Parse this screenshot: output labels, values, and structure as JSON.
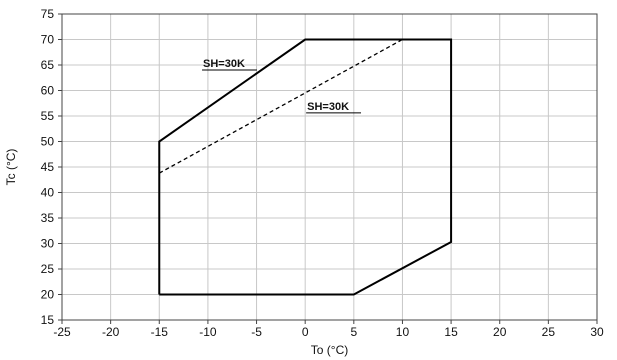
{
  "chart_data": {
    "type": "line",
    "title": "",
    "xlabel": "To (°C)",
    "ylabel": "Tc (°C)",
    "xlim": [
      -25,
      30
    ],
    "ylim": [
      15,
      75
    ],
    "xticks": [
      -25,
      -20,
      -15,
      -10,
      -5,
      0,
      5,
      10,
      15,
      20,
      25,
      30
    ],
    "yticks": [
      15,
      20,
      25,
      30,
      35,
      40,
      45,
      50,
      55,
      60,
      65,
      70,
      75
    ],
    "grid": true,
    "series": [
      {
        "style": "solid",
        "color": "#000000",
        "points": [
          [
            -15,
            20
          ],
          [
            5,
            20
          ],
          [
            15,
            30.3
          ],
          [
            15,
            70
          ],
          [
            0,
            70
          ],
          [
            -15,
            50
          ],
          [
            -15,
            20
          ]
        ]
      },
      {
        "style": "dashed",
        "color": "#000000",
        "points": [
          [
            -15,
            43.8
          ],
          [
            10,
            70
          ]
        ]
      }
    ],
    "annotations": [
      {
        "text": "SH=30K",
        "x": -10.5,
        "y": 64.6
      },
      {
        "text": "SH=30K",
        "x": 0.2,
        "y": 56.2
      }
    ]
  }
}
